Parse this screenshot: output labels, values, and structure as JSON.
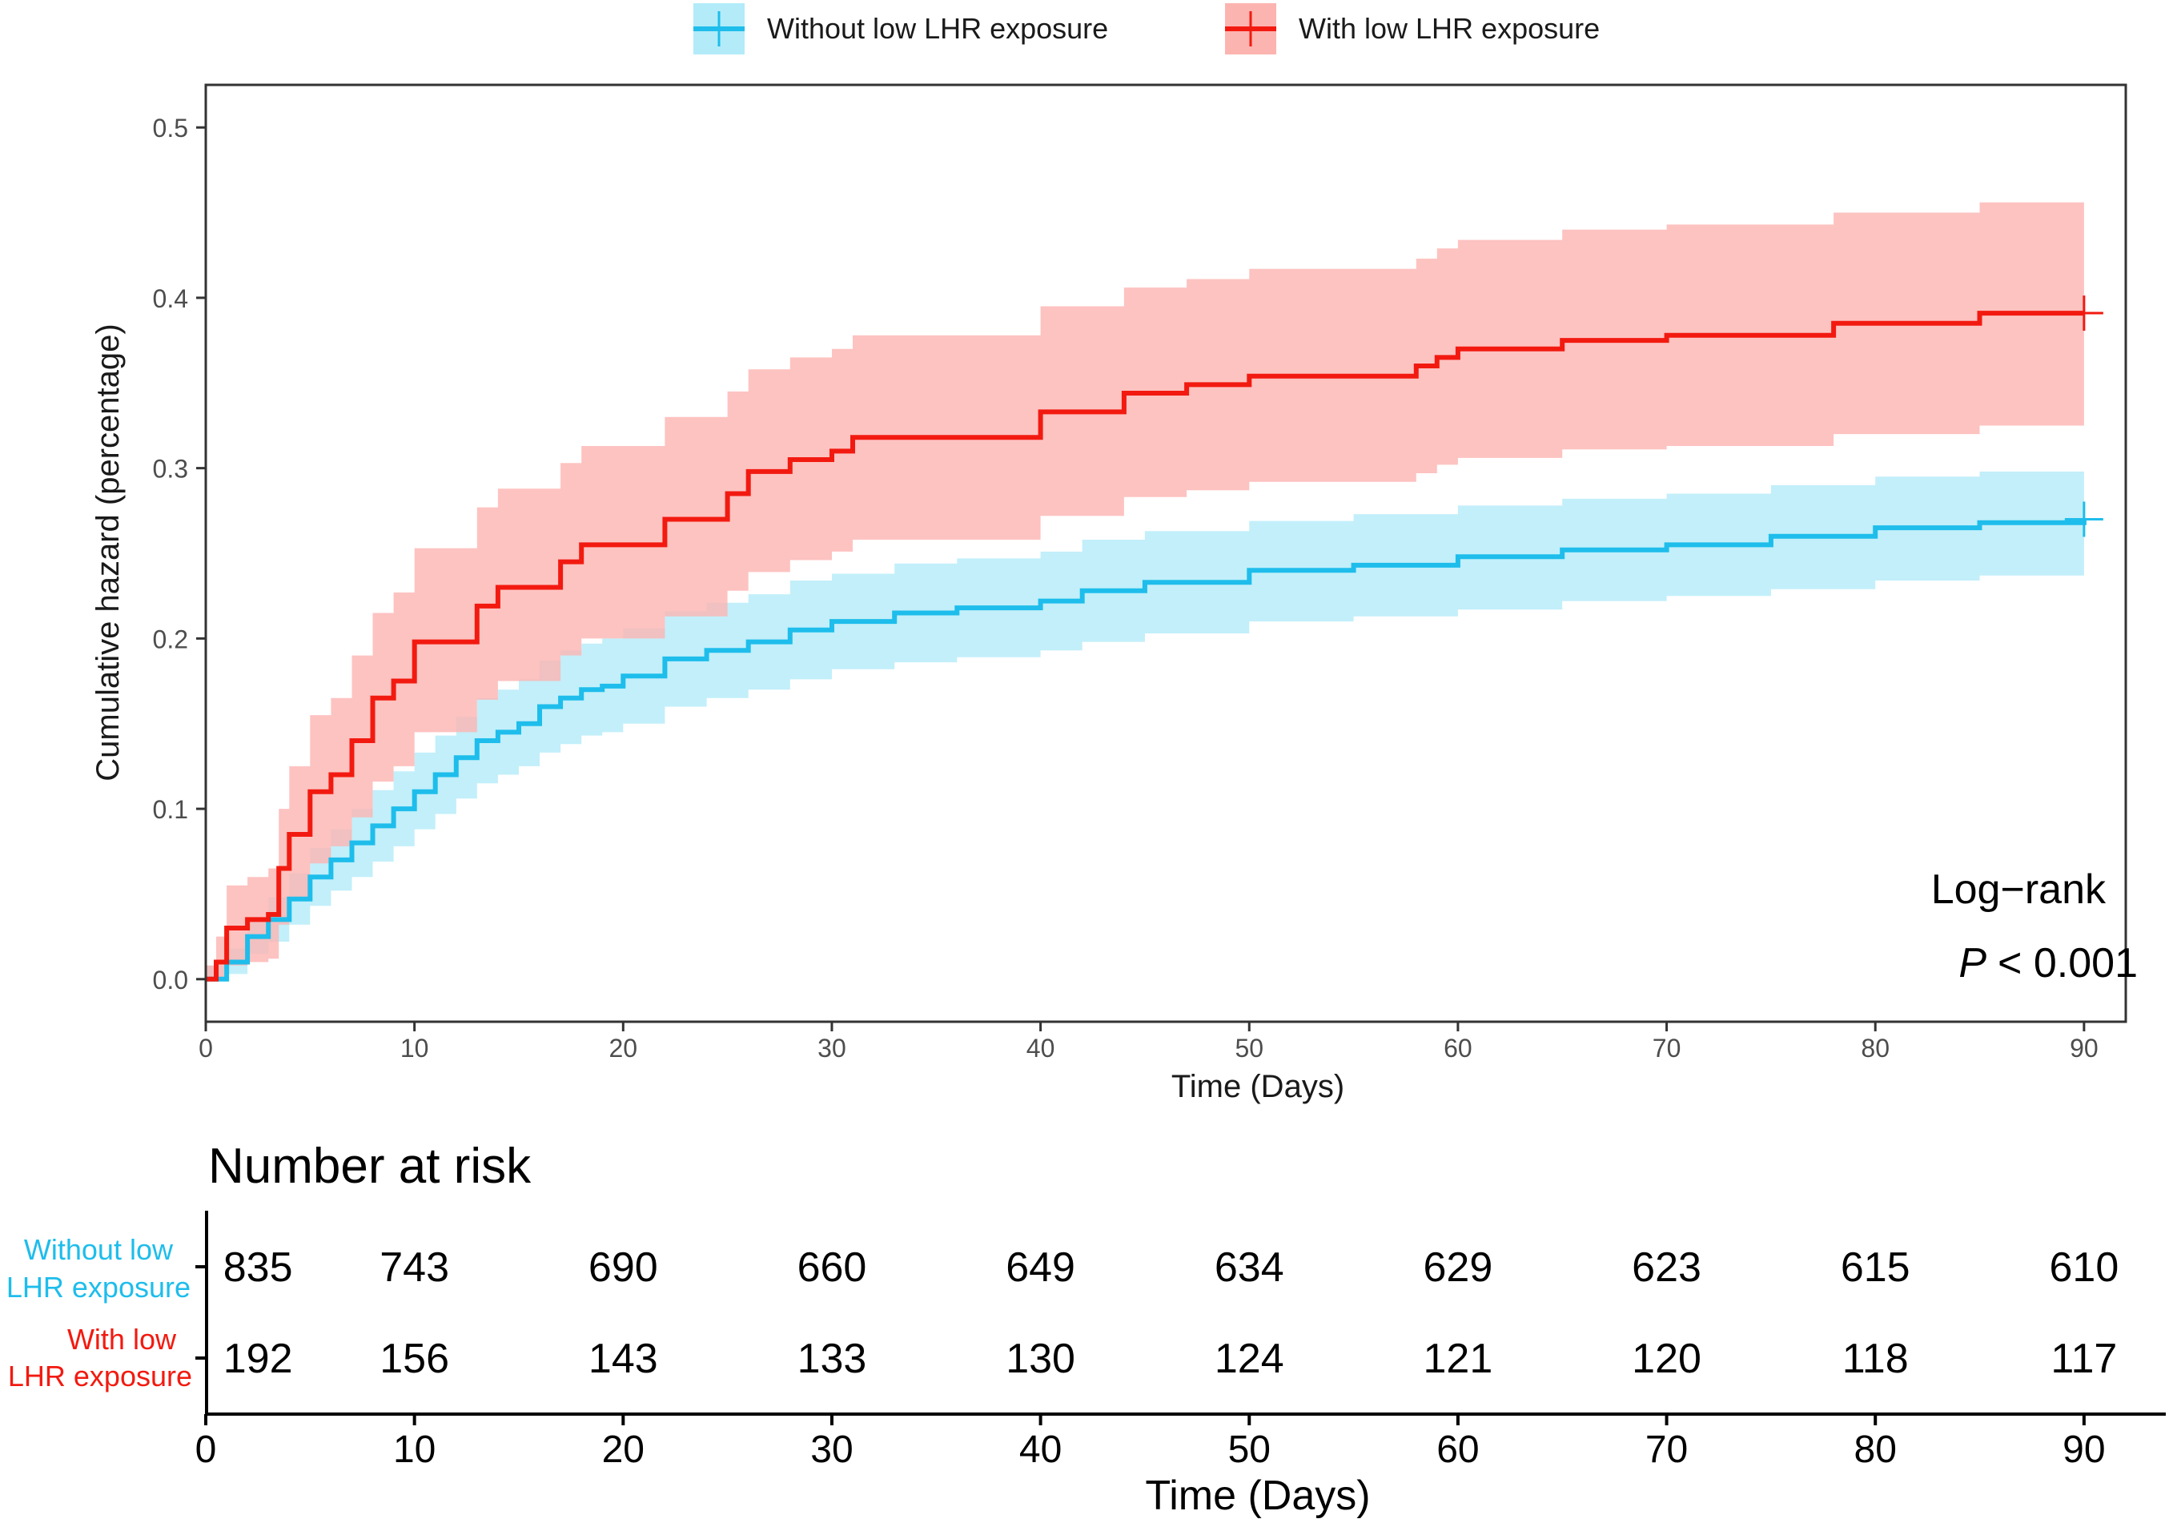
{
  "chart_data": [
    {
      "type": "line",
      "subtype": "cumulative-hazard-step",
      "legend": {
        "placement": "top-center",
        "entries": [
          "Without low LHR exposure",
          "With low LHR exposure"
        ]
      },
      "xlabel": "Time (Days)",
      "ylabel": "Cumulative hazard (percentage)",
      "xlim": [
        0,
        92
      ],
      "ylim": [
        -0.025,
        0.525
      ],
      "xticks": [
        0,
        10,
        20,
        30,
        40,
        50,
        60,
        70,
        80,
        90
      ],
      "yticks": [
        0.0,
        0.1,
        0.2,
        0.3,
        0.4,
        0.5
      ],
      "ytick_labels": [
        "0.0",
        "0.1",
        "0.2",
        "0.3",
        "0.4",
        "0.5"
      ],
      "grid": false,
      "annotation": {
        "line1": "Log−rank",
        "p_symbol": "P",
        "p_value": "< 0.001"
      },
      "series": [
        {
          "name": "Without low LHR exposure",
          "color": "#1EBDEB",
          "band_color": "#B3EBF9",
          "x": [
            0,
            1,
            2,
            3,
            4,
            5,
            6,
            7,
            8,
            9,
            10,
            11,
            12,
            13,
            14,
            15,
            16,
            17,
            18,
            19,
            20,
            22,
            24,
            26,
            28,
            30,
            33,
            36,
            40,
            42,
            45,
            50,
            55,
            60,
            65,
            70,
            75,
            80,
            85,
            90
          ],
          "y": [
            0.0,
            0.01,
            0.025,
            0.035,
            0.047,
            0.06,
            0.07,
            0.08,
            0.09,
            0.1,
            0.11,
            0.12,
            0.13,
            0.14,
            0.145,
            0.15,
            0.16,
            0.165,
            0.17,
            0.172,
            0.178,
            0.188,
            0.193,
            0.198,
            0.205,
            0.21,
            0.215,
            0.218,
            0.222,
            0.228,
            0.233,
            0.24,
            0.243,
            0.248,
            0.252,
            0.255,
            0.26,
            0.265,
            0.268,
            0.27
          ],
          "lower": [
            0.0,
            0.003,
            0.015,
            0.022,
            0.032,
            0.043,
            0.052,
            0.06,
            0.069,
            0.078,
            0.088,
            0.097,
            0.106,
            0.115,
            0.12,
            0.125,
            0.133,
            0.138,
            0.143,
            0.145,
            0.15,
            0.16,
            0.165,
            0.17,
            0.176,
            0.182,
            0.186,
            0.189,
            0.193,
            0.198,
            0.203,
            0.21,
            0.213,
            0.217,
            0.222,
            0.225,
            0.229,
            0.234,
            0.237,
            0.239
          ],
          "upper": [
            0.008,
            0.018,
            0.035,
            0.048,
            0.062,
            0.077,
            0.088,
            0.1,
            0.111,
            0.122,
            0.133,
            0.143,
            0.154,
            0.165,
            0.17,
            0.176,
            0.187,
            0.193,
            0.197,
            0.2,
            0.206,
            0.216,
            0.221,
            0.226,
            0.234,
            0.238,
            0.244,
            0.247,
            0.251,
            0.258,
            0.263,
            0.269,
            0.273,
            0.278,
            0.282,
            0.285,
            0.29,
            0.295,
            0.298,
            0.3
          ],
          "end_value": 0.27
        },
        {
          "name": "With low LHR exposure",
          "color": "#F21A10",
          "band_color": "#FCB4B1",
          "x": [
            0,
            0.5,
            1,
            2,
            3,
            3.5,
            4,
            5,
            6,
            7,
            8,
            9,
            10,
            13,
            14,
            15,
            17,
            18,
            20,
            22,
            25,
            26,
            28,
            30,
            31,
            35,
            38,
            40,
            44,
            47,
            50,
            55,
            58,
            59,
            60,
            63,
            65,
            70,
            78,
            85,
            90
          ],
          "y": [
            0.0,
            0.01,
            0.03,
            0.035,
            0.038,
            0.065,
            0.085,
            0.11,
            0.12,
            0.14,
            0.165,
            0.175,
            0.198,
            0.219,
            0.23,
            0.23,
            0.245,
            0.255,
            0.255,
            0.27,
            0.285,
            0.298,
            0.305,
            0.31,
            0.318,
            0.318,
            0.318,
            0.333,
            0.344,
            0.349,
            0.354,
            0.354,
            0.36,
            0.365,
            0.37,
            0.37,
            0.375,
            0.378,
            0.385,
            0.391,
            0.391
          ],
          "lower": [
            0.0,
            0.0,
            0.008,
            0.01,
            0.012,
            0.032,
            0.048,
            0.068,
            0.078,
            0.095,
            0.116,
            0.125,
            0.145,
            0.164,
            0.175,
            0.175,
            0.19,
            0.2,
            0.2,
            0.213,
            0.228,
            0.239,
            0.246,
            0.251,
            0.258,
            0.258,
            0.258,
            0.272,
            0.283,
            0.287,
            0.292,
            0.292,
            0.297,
            0.302,
            0.306,
            0.306,
            0.311,
            0.313,
            0.32,
            0.325,
            0.325
          ],
          "upper": [
            0.008,
            0.025,
            0.055,
            0.06,
            0.065,
            0.1,
            0.125,
            0.155,
            0.165,
            0.19,
            0.215,
            0.227,
            0.253,
            0.277,
            0.288,
            0.288,
            0.303,
            0.313,
            0.313,
            0.33,
            0.345,
            0.358,
            0.365,
            0.37,
            0.378,
            0.378,
            0.378,
            0.395,
            0.406,
            0.411,
            0.417,
            0.417,
            0.423,
            0.429,
            0.434,
            0.434,
            0.44,
            0.443,
            0.45,
            0.456,
            0.456
          ],
          "end_value": 0.391
        }
      ]
    },
    {
      "type": "table",
      "title": "Number at risk",
      "xlabel": "Time (Days)",
      "xlim": [
        0,
        92
      ],
      "xticks": [
        0,
        10,
        20,
        30,
        40,
        50,
        60,
        70,
        80,
        90
      ],
      "time_points": [
        2.5,
        10,
        20,
        30,
        40,
        50,
        60,
        70,
        80,
        90
      ],
      "rows": [
        {
          "label_line1": "Without low",
          "label_line2": "LHR exposure",
          "color": "#1EBDEB",
          "values": [
            "835",
            "743",
            "690",
            "660",
            "649",
            "634",
            "629",
            "623",
            "615",
            "610"
          ]
        },
        {
          "label_line1": "With low",
          "label_line2": "LHR exposure",
          "color": "#F21A10",
          "values": [
            "192",
            "156",
            "143",
            "133",
            "130",
            "124",
            "121",
            "120",
            "118",
            "117"
          ]
        }
      ]
    }
  ]
}
